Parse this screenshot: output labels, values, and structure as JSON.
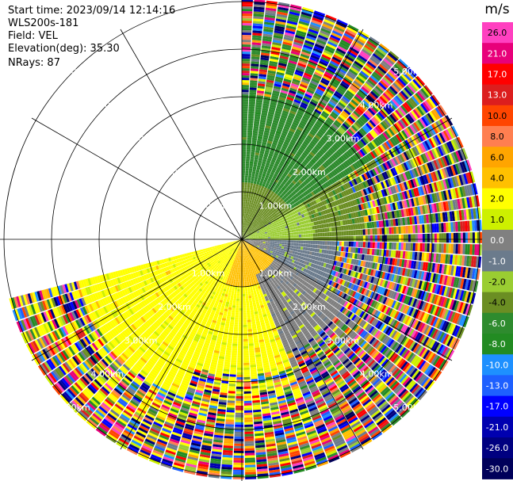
{
  "header": {
    "start_time": "Start time: 2023/09/14 12:14:16",
    "station": "WLS200s-181",
    "field": "Field: VEL",
    "elevation": "Elevation(deg): 35.30",
    "nrays": "NRays: 87"
  },
  "colorbar": {
    "unit": "m/s",
    "ticks": [
      "26.0",
      "21.0",
      "17.0",
      "13.0",
      "10.0",
      "8.0",
      "6.0",
      "4.0",
      "2.0",
      "1.0",
      "0.0",
      "-1.0",
      "-2.0",
      "-4.0",
      "-6.0",
      "-8.0",
      "-10.0",
      "-13.0",
      "-17.0",
      "-21.0",
      "-26.0",
      "-30.0"
    ],
    "colors": [
      "#ff40c0",
      "#e8007a",
      "#ff0000",
      "#dc1e1e",
      "#ff4500",
      "#ff7f50",
      "#ffa500",
      "#ffc000",
      "#ffff00",
      "#cdf000",
      "#808080",
      "#6b7b8c",
      "#9acd32",
      "#6b8e23",
      "#2e8b2e",
      "#228b22",
      "#1e90ff",
      "#1e60ff",
      "#0000ff",
      "#0000b0",
      "#000080",
      "#00005a"
    ]
  },
  "chart_data": {
    "type": "polar_ppi",
    "field": "VEL",
    "unit": "m/s",
    "range_ring_labels": [
      "1.00km",
      "2.00km",
      "3.00km",
      "4.00km",
      "5.00km"
    ],
    "ring_ranges_km": [
      1,
      2,
      3,
      4,
      5
    ],
    "max_range_km": 5.0,
    "spoke_angles_deg": [
      0,
      30,
      60,
      90,
      120,
      150,
      180,
      210,
      240,
      270,
      300,
      330
    ],
    "valid_azimuth_sector_deg": [
      0,
      256
    ],
    "sectors": [
      {
        "azimuth_deg": [
          0,
          30
        ],
        "near_range_km": [
          0,
          1.2
        ],
        "near_value": -4.0,
        "mid_range_km": [
          1.2,
          3.0
        ],
        "mid_value": -6.0,
        "far": "noisy"
      },
      {
        "azimuth_deg": [
          30,
          60
        ],
        "near_range_km": [
          0,
          1.2
        ],
        "near_value": -4.0,
        "mid_range_km": [
          1.2,
          3.0
        ],
        "mid_value": -6.0,
        "far": "noisy"
      },
      {
        "azimuth_deg": [
          60,
          90
        ],
        "near_range_km": [
          0,
          1.5
        ],
        "near_value": -2.0,
        "mid_range_km": [
          1.5,
          2.5
        ],
        "mid_value": -4.0,
        "far": "noisy"
      },
      {
        "azimuth_deg": [
          90,
          120
        ],
        "near_range_km": [
          0,
          0.6
        ],
        "near_value": 0.0,
        "mid_range_km": [
          0.6,
          2.0
        ],
        "mid_value": -1.0,
        "far": "noisy"
      },
      {
        "azimuth_deg": [
          120,
          160
        ],
        "near_range_km": [
          0,
          0.8
        ],
        "near_value": 4.0,
        "mid_range_km": [
          0.8,
          2.5
        ],
        "mid_value": 0.0,
        "far": "noisy"
      },
      {
        "azimuth_deg": [
          160,
          200
        ],
        "near_range_km": [
          0,
          1.0
        ],
        "near_value": 4.0,
        "mid_range_km": [
          1.0,
          2.8
        ],
        "mid_value": 2.0,
        "far": "noisy"
      },
      {
        "azimuth_deg": [
          200,
          256
        ],
        "near_range_km": [
          0,
          1.5
        ],
        "near_value": 2.0,
        "mid_range_km": [
          1.5,
          3.5
        ],
        "mid_value": 2.0,
        "far": "noisy"
      }
    ]
  }
}
